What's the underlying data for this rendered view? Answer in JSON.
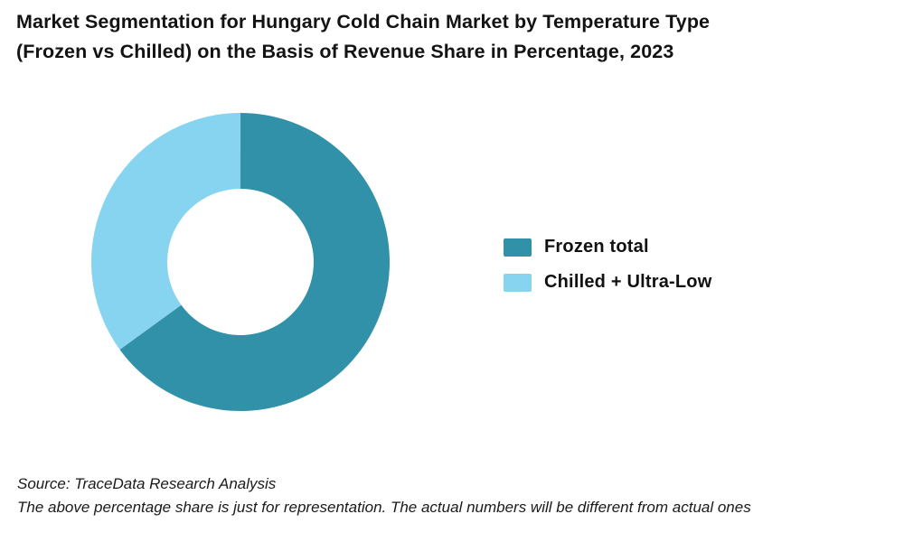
{
  "header": {
    "title_lines": [
      "Market Segmentation for Hungary Cold Chain Market by Temperature Type",
      "(Frozen vs Chilled) on the Basis of Revenue Share in Percentage, 2023"
    ]
  },
  "chart_data": {
    "type": "pie",
    "subtype": "donut",
    "title": "Market Segmentation for Hungary Cold Chain Market by Temperature Type (Frozen vs Chilled) on the Basis of Revenue Share in Percentage, 2023",
    "segments": [
      {
        "label": "Frozen total",
        "value": 65,
        "color": "#3191A8"
      },
      {
        "label": "Chilled + Ultra-Low",
        "value": 35,
        "color": "#87D4F0"
      }
    ],
    "start_angle_deg": 0,
    "direction": "clockwise",
    "inner_radius_ratio": 0.49,
    "legend_position": "right",
    "data_labels_shown": false,
    "background": "#ffffff"
  },
  "footer": {
    "source": "Source: TraceData Research Analysis",
    "disclaimer": "The above percentage share is just for representation. The actual numbers will be different from actual ones"
  }
}
